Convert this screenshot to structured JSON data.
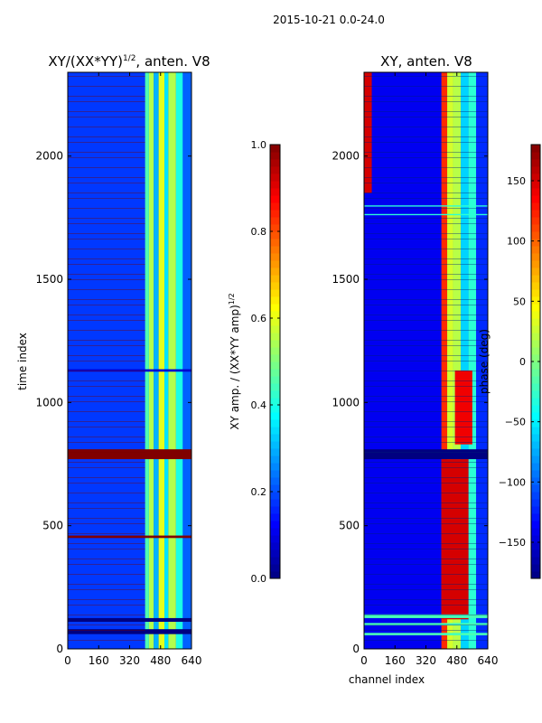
{
  "figure_title": "2015-10-21 0.0-24.0",
  "chart_data": [
    {
      "type": "heatmap",
      "title_main": "XY/(XX*YY)",
      "title_sup": "1/2",
      "title_rest": ", anten. V8",
      "xlabel": "",
      "ylabel": "time index",
      "xlim": [
        0,
        640
      ],
      "ylim": [
        0,
        2340
      ],
      "xticks": [
        0,
        160,
        320,
        480,
        640
      ],
      "yticks": [
        0,
        500,
        1000,
        1500,
        2000
      ],
      "colorbar": {
        "label_main": "XY amp. / (XX*YY amp)",
        "label_sup": "1/2",
        "range": [
          0.0,
          1.0
        ],
        "ticks": [
          "0.0",
          "0.2",
          "0.4",
          "0.6",
          "0.8",
          "1.0"
        ],
        "tick_values": [
          0.0,
          0.2,
          0.4,
          0.6,
          0.8,
          1.0
        ],
        "colormap": "jet"
      },
      "bands": [
        {
          "x0": 0,
          "x1": 400,
          "value": 0.18
        },
        {
          "x0": 400,
          "x1": 420,
          "value": 0.45
        },
        {
          "x0": 420,
          "x1": 445,
          "value": 0.55
        },
        {
          "x0": 445,
          "x1": 470,
          "value": 0.3
        },
        {
          "x0": 470,
          "x1": 500,
          "value": 0.6
        },
        {
          "x0": 500,
          "x1": 520,
          "value": 0.35
        },
        {
          "x0": 520,
          "x1": 560,
          "value": 0.55
        },
        {
          "x0": 560,
          "x1": 595,
          "value": 0.4
        },
        {
          "x0": 595,
          "x1": 640,
          "value": 0.22
        }
      ],
      "hot_rows": [
        {
          "y0": 770,
          "y1": 810,
          "value": 1.0
        },
        {
          "y0": 450,
          "y1": 460,
          "value": 1.0
        }
      ],
      "flag_rows": [
        {
          "y0": 110,
          "y1": 125,
          "value": 0.0
        },
        {
          "y0": 60,
          "y1": 80,
          "value": 0.0
        },
        {
          "y0": 1125,
          "y1": 1135,
          "value": 0.08
        }
      ]
    },
    {
      "type": "heatmap",
      "title": "XY, anten. V8",
      "xlabel": "channel index",
      "ylabel": "",
      "xlim": [
        0,
        640
      ],
      "ylim": [
        0,
        2340
      ],
      "xticks": [
        0,
        160,
        320,
        480,
        640
      ],
      "yticks": [
        0,
        500,
        1000,
        1500,
        2000
      ],
      "colorbar": {
        "label": "phase (deg)",
        "range": [
          -180,
          180
        ],
        "ticks": [
          "−150",
          "−100",
          "−50",
          "0",
          "50",
          "100",
          "150"
        ],
        "tick_values": [
          -150,
          -100,
          -50,
          0,
          50,
          100,
          150
        ],
        "colormap": "jet"
      },
      "bands": [
        {
          "x0": 0,
          "x1": 400,
          "value": -140
        },
        {
          "x0": 400,
          "x1": 430,
          "value": 120
        },
        {
          "x0": 430,
          "x1": 460,
          "value": 30
        },
        {
          "x0": 460,
          "x1": 500,
          "value": 20
        },
        {
          "x0": 500,
          "x1": 540,
          "value": -60
        },
        {
          "x0": 540,
          "x1": 580,
          "value": -30
        },
        {
          "x0": 580,
          "x1": 640,
          "value": -120
        }
      ],
      "hot_regions": [
        {
          "x0": 400,
          "x1": 540,
          "y0": 120,
          "y1": 770,
          "value": 150
        },
        {
          "x0": 470,
          "x1": 560,
          "y0": 830,
          "y1": 1130,
          "value": 140
        },
        {
          "x0": 0,
          "x1": 40,
          "y0": 1850,
          "y1": 2340,
          "value": 150
        }
      ],
      "flag_rows": [
        {
          "y0": 770,
          "y1": 810,
          "value": -180
        },
        {
          "y0": 125,
          "y1": 140,
          "value": -20
        },
        {
          "y0": 95,
          "y1": 105,
          "value": -20
        },
        {
          "y0": 55,
          "y1": 65,
          "value": -20
        },
        {
          "y0": 1760,
          "y1": 1765,
          "value": -30
        },
        {
          "y0": 1795,
          "y1": 1800,
          "value": -30
        }
      ]
    }
  ]
}
